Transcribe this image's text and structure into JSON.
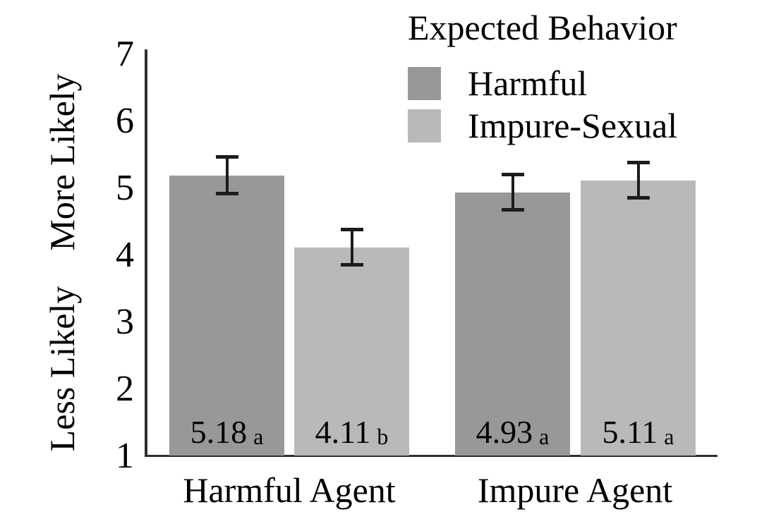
{
  "chart_data": {
    "type": "bar",
    "title": "",
    "categories": [
      "Harmful Agent",
      "Impure Agent"
    ],
    "series": [
      {
        "name": "Harmful",
        "values": [
          5.18,
          4.93
        ]
      },
      {
        "name": "Impure-Sexual",
        "values": [
          4.11,
          5.11
        ]
      }
    ],
    "bars": [
      {
        "category": "Harmful Agent",
        "series": "Harmful",
        "value": 5.18,
        "error": 0.3,
        "label": "5.18",
        "letter": "a"
      },
      {
        "category": "Harmful Agent",
        "series": "Impure-Sexual",
        "value": 4.11,
        "error": 0.29,
        "label": "4.11",
        "letter": "b"
      },
      {
        "category": "Impure Agent",
        "series": "Harmful",
        "value": 4.93,
        "error": 0.29,
        "label": "4.93",
        "letter": "a"
      },
      {
        "category": "Impure Agent",
        "series": "Impure-Sexual",
        "value": 5.11,
        "error": 0.29,
        "label": "5.11",
        "letter": "a"
      }
    ],
    "legend": {
      "title": "Expected Behavior",
      "position": "top-right",
      "entries": [
        {
          "label": "Harmful",
          "color": "#989898"
        },
        {
          "label": "Impure-Sexual",
          "color": "#b9b9b9"
        }
      ]
    },
    "xlabel": "",
    "ylabel": "Less Likely  More Likely",
    "ylabel_parts": [
      "Less Likely",
      "More Likely"
    ],
    "yticks": [
      1,
      2,
      3,
      4,
      5,
      6,
      7
    ],
    "ylim": [
      1,
      7
    ],
    "grid": false,
    "error_bars": true,
    "colors": {
      "axis": "#2e2e2e",
      "error_bar": "#1c1c1c",
      "text": "#000000",
      "background": "#ffffff"
    }
  }
}
